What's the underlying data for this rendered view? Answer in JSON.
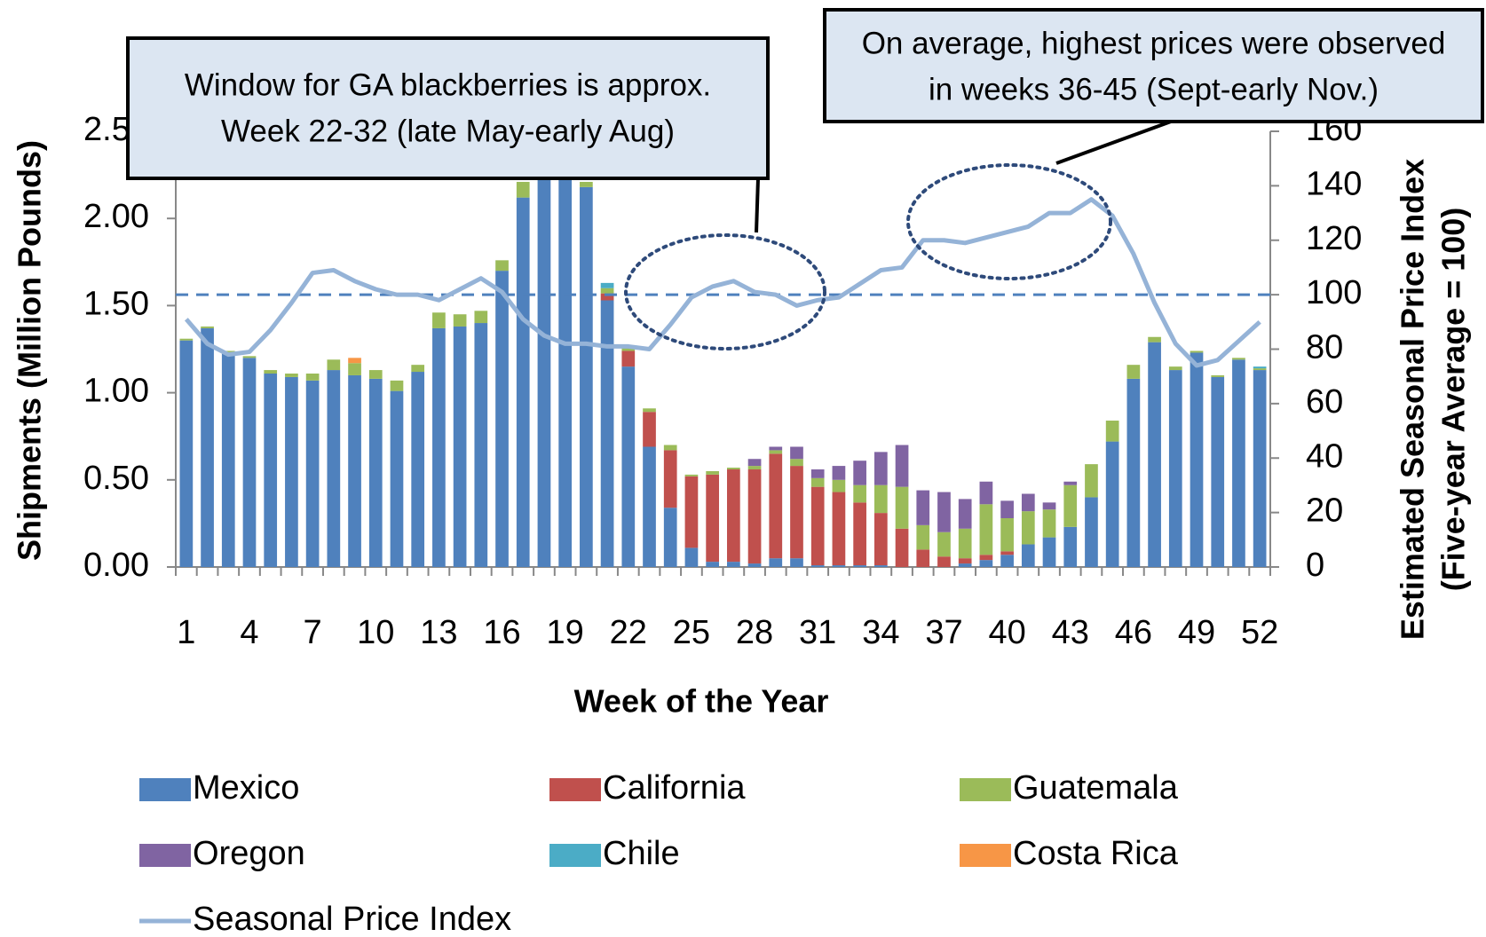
{
  "chart_data": {
    "type": "bar",
    "stacked": true,
    "xlabel": "Week of the Year",
    "ylabel": "Shipments (Million Pounds)",
    "y2label": [
      "Estimated Seasonal Price Index",
      "(Five-year Average = 100)"
    ],
    "categories": [
      "1",
      null,
      null,
      "4",
      null,
      null,
      "7",
      null,
      null,
      "10",
      null,
      null,
      "13",
      null,
      null,
      "16",
      null,
      null,
      "19",
      null,
      null,
      "22",
      null,
      null,
      "25",
      null,
      null,
      "28",
      null,
      null,
      "31",
      null,
      null,
      "34",
      null,
      null,
      "37",
      null,
      null,
      "40",
      null,
      null,
      "43",
      null,
      null,
      "46",
      null,
      null,
      "49",
      null,
      null,
      "52"
    ],
    "ylim": [
      0,
      2.5
    ],
    "yticks": [
      {
        "value": 0,
        "label": "0.00"
      },
      {
        "value": 0.5,
        "label": "0.50"
      },
      {
        "value": 1,
        "label": "1.00"
      },
      {
        "value": 1.5,
        "label": "1.50"
      },
      {
        "value": 2,
        "label": "2.00"
      },
      {
        "value": 2.5,
        "label": "2.50"
      }
    ],
    "y2lim": [
      0,
      160
    ],
    "y2ticks": [
      0,
      20,
      40,
      60,
      80,
      100,
      120,
      140,
      160
    ],
    "reference_line": {
      "value": 100,
      "axis": "y2",
      "color": "#4f81bd"
    },
    "series": [
      {
        "name": "Mexico",
        "color": "#4f81bd",
        "values": [
          1.3,
          1.37,
          1.23,
          1.2,
          1.11,
          1.09,
          1.07,
          1.13,
          1.1,
          1.08,
          1.01,
          1.12,
          1.37,
          1.38,
          1.4,
          1.7,
          2.12,
          2.25,
          2.26,
          2.18,
          1.53,
          1.15,
          0.69,
          0.34,
          0.11,
          0.03,
          0.03,
          0.02,
          0.05,
          0.05,
          0.01,
          0.01,
          0.01,
          0.01,
          0,
          0,
          0,
          0.02,
          0.04,
          0.07,
          0.13,
          0.17,
          0.23,
          0.4,
          0.72,
          1.08,
          1.29,
          1.13,
          1.23,
          1.09,
          1.19,
          1.13
        ]
      },
      {
        "name": "California",
        "color": "#c0504d",
        "values": [
          0,
          0,
          0,
          0,
          0,
          0,
          0,
          0,
          0,
          0,
          0,
          0,
          0,
          0,
          0,
          0,
          0,
          0,
          0,
          0,
          0.04,
          0.09,
          0.2,
          0.33,
          0.41,
          0.5,
          0.53,
          0.54,
          0.6,
          0.53,
          0.45,
          0.42,
          0.36,
          0.3,
          0.22,
          0.1,
          0.06,
          0.03,
          0.03,
          0.02,
          0,
          0,
          0,
          0,
          0,
          0,
          0,
          0,
          0,
          0,
          0,
          0
        ]
      },
      {
        "name": "Guatemala",
        "color": "#9bbb59",
        "values": [
          0.01,
          0.01,
          0.01,
          0.01,
          0.02,
          0.02,
          0.04,
          0.06,
          0.07,
          0.05,
          0.06,
          0.04,
          0.09,
          0.07,
          0.07,
          0.06,
          0.09,
          0.03,
          0.03,
          0.03,
          0.03,
          0.03,
          0.02,
          0.03,
          0.01,
          0.02,
          0.01,
          0.02,
          0.02,
          0.04,
          0.05,
          0.07,
          0.1,
          0.16,
          0.24,
          0.14,
          0.14,
          0.17,
          0.29,
          0.19,
          0.19,
          0.16,
          0.24,
          0.19,
          0.12,
          0.08,
          0.03,
          0.02,
          0.01,
          0.01,
          0.01,
          0.01
        ]
      },
      {
        "name": "Oregon",
        "color": "#8064a2",
        "values": [
          0,
          0,
          0,
          0,
          0,
          0,
          0,
          0,
          0,
          0,
          0,
          0,
          0,
          0,
          0,
          0,
          0,
          0,
          0,
          0,
          0,
          0,
          0,
          0,
          0,
          0,
          0,
          0.04,
          0.02,
          0.07,
          0.05,
          0.08,
          0.14,
          0.19,
          0.24,
          0.2,
          0.23,
          0.17,
          0.13,
          0.1,
          0.1,
          0.04,
          0.02,
          0,
          0,
          0,
          0,
          0,
          0,
          0,
          0,
          0
        ]
      },
      {
        "name": "Chile",
        "color": "#4bacc6",
        "values": [
          0,
          0,
          0,
          0,
          0,
          0,
          0,
          0,
          0,
          0,
          0,
          0,
          0,
          0,
          0,
          0,
          0,
          0.02,
          0.03,
          0,
          0.03,
          0,
          0,
          0,
          0,
          0,
          0,
          0,
          0,
          0,
          0,
          0,
          0,
          0,
          0,
          0,
          0,
          0,
          0,
          0,
          0,
          0,
          0,
          0,
          0,
          0,
          0,
          0,
          0,
          0,
          0,
          0.01
        ]
      },
      {
        "name": "Costa Rica",
        "color": "#f79646",
        "values": [
          0,
          0,
          0,
          0,
          0,
          0,
          0,
          0,
          0.03,
          0,
          0,
          0,
          0,
          0,
          0,
          0,
          0,
          0,
          0,
          0,
          0,
          0,
          0,
          0,
          0,
          0,
          0,
          0,
          0,
          0,
          0,
          0,
          0,
          0,
          0,
          0,
          0,
          0,
          0,
          0,
          0,
          0,
          0,
          0,
          0,
          0,
          0,
          0,
          0,
          0,
          0,
          0
        ]
      },
      {
        "name": "Seasonal Price Index",
        "type": "line",
        "axis": "y2",
        "color": "#95b3d7",
        "values": [
          91,
          82,
          78,
          79,
          87,
          97,
          108,
          109,
          105,
          102,
          100,
          100,
          98,
          102,
          106,
          101,
          91,
          85,
          82,
          82,
          81,
          81,
          80,
          89,
          99,
          103,
          105,
          101,
          100,
          96,
          98,
          99,
          104,
          109,
          110,
          120,
          120,
          119,
          121,
          123,
          125,
          130,
          130,
          135,
          129,
          115,
          97,
          82,
          74,
          76,
          83,
          90
        ]
      }
    ],
    "annotations": [
      [
        "Window for GA blackberries is approx.",
        "Week 22-32 (late May-early Aug)"
      ],
      [
        "On average, highest prices were observed",
        "in weeks 36-45 (Sept-early Nov.)"
      ]
    ]
  }
}
